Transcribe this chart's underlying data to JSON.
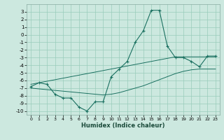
{
  "xlabel": "Humidex (Indice chaleur)",
  "bg_color": "#cce8df",
  "grid_color": "#99ccbb",
  "line_color": "#1a7060",
  "x": [
    0,
    1,
    2,
    3,
    4,
    5,
    6,
    7,
    8,
    9,
    10,
    11,
    12,
    13,
    14,
    15,
    16,
    17,
    18,
    19,
    20,
    21,
    22,
    23
  ],
  "y_main": [
    -6.8,
    -6.3,
    -6.5,
    -7.8,
    -8.3,
    -8.3,
    -9.5,
    -10.0,
    -8.8,
    -8.8,
    -5.5,
    -4.5,
    -3.5,
    -1.0,
    0.5,
    3.2,
    3.2,
    -1.5,
    -3.0,
    -3.0,
    -3.5,
    -4.2,
    -2.8,
    -2.8
  ],
  "y_upper": [
    -6.5,
    -6.3,
    -6.1,
    -5.9,
    -5.7,
    -5.5,
    -5.3,
    -5.1,
    -4.9,
    -4.7,
    -4.5,
    -4.3,
    -4.1,
    -3.9,
    -3.7,
    -3.5,
    -3.3,
    -3.1,
    -2.9,
    -2.9,
    -2.9,
    -2.9,
    -2.9,
    -2.9
  ],
  "y_lower": [
    -7.0,
    -7.1,
    -7.2,
    -7.3,
    -7.4,
    -7.5,
    -7.6,
    -7.7,
    -7.8,
    -7.9,
    -7.8,
    -7.6,
    -7.3,
    -7.0,
    -6.7,
    -6.3,
    -5.9,
    -5.5,
    -5.1,
    -4.8,
    -4.6,
    -4.5,
    -4.5,
    -4.5
  ],
  "ylim": [
    -10.5,
    4.0
  ],
  "xlim": [
    -0.5,
    23.5
  ],
  "yticks": [
    -10,
    -9,
    -8,
    -7,
    -6,
    -5,
    -4,
    -3,
    -2,
    -1,
    0,
    1,
    2,
    3
  ],
  "xticks": [
    0,
    1,
    2,
    3,
    4,
    5,
    6,
    7,
    8,
    9,
    10,
    11,
    12,
    13,
    14,
    15,
    16,
    17,
    18,
    19,
    20,
    21,
    22,
    23
  ]
}
